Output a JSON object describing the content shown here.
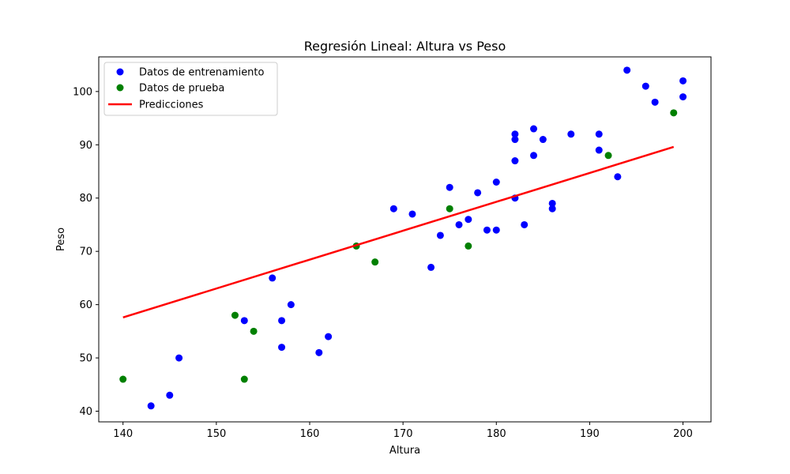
{
  "chart_data": {
    "type": "scatter",
    "title": "Regresión Lineal: Altura vs Peso",
    "xlabel": "Altura",
    "ylabel": "Peso",
    "xlim": [
      137.4,
      203
    ],
    "ylim": [
      38,
      106.5
    ],
    "xticks": [
      140,
      150,
      160,
      170,
      180,
      190,
      200
    ],
    "yticks": [
      40,
      50,
      60,
      70,
      80,
      90,
      100
    ],
    "grid": false,
    "legend_position": "top-left",
    "series": [
      {
        "name": "Datos de entrenamiento",
        "kind": "scatter",
        "color": "#0000ff",
        "points": [
          [
            143,
            41
          ],
          [
            145,
            43
          ],
          [
            146,
            50
          ],
          [
            153,
            57
          ],
          [
            156,
            65
          ],
          [
            157,
            52
          ],
          [
            157,
            57
          ],
          [
            158,
            60
          ],
          [
            161,
            51
          ],
          [
            162,
            54
          ],
          [
            169,
            78
          ],
          [
            171,
            77
          ],
          [
            173,
            67
          ],
          [
            174,
            73
          ],
          [
            175,
            82
          ],
          [
            176,
            75
          ],
          [
            177,
            76
          ],
          [
            178,
            81
          ],
          [
            179,
            74
          ],
          [
            180,
            74
          ],
          [
            180,
            83
          ],
          [
            182,
            80
          ],
          [
            182,
            87
          ],
          [
            182,
            91
          ],
          [
            182,
            92
          ],
          [
            183,
            75
          ],
          [
            184,
            88
          ],
          [
            184,
            93
          ],
          [
            185,
            91
          ],
          [
            186,
            78
          ],
          [
            186,
            79
          ],
          [
            188,
            92
          ],
          [
            191,
            89
          ],
          [
            191,
            92
          ],
          [
            193,
            84
          ],
          [
            194,
            104
          ],
          [
            196,
            101
          ],
          [
            197,
            98
          ],
          [
            200,
            99
          ],
          [
            200,
            102
          ]
        ]
      },
      {
        "name": "Datos de prueba",
        "kind": "scatter",
        "color": "#008000",
        "points": [
          [
            140,
            46
          ],
          [
            152,
            58
          ],
          [
            153,
            46
          ],
          [
            154,
            55
          ],
          [
            165,
            71
          ],
          [
            167,
            68
          ],
          [
            175,
            78
          ],
          [
            177,
            71
          ],
          [
            192,
            88
          ],
          [
            199,
            96
          ]
        ]
      },
      {
        "name": "Predicciones",
        "kind": "line",
        "color": "#ff0000",
        "points": [
          [
            140,
            57.6
          ],
          [
            199,
            89.6
          ]
        ]
      }
    ]
  }
}
